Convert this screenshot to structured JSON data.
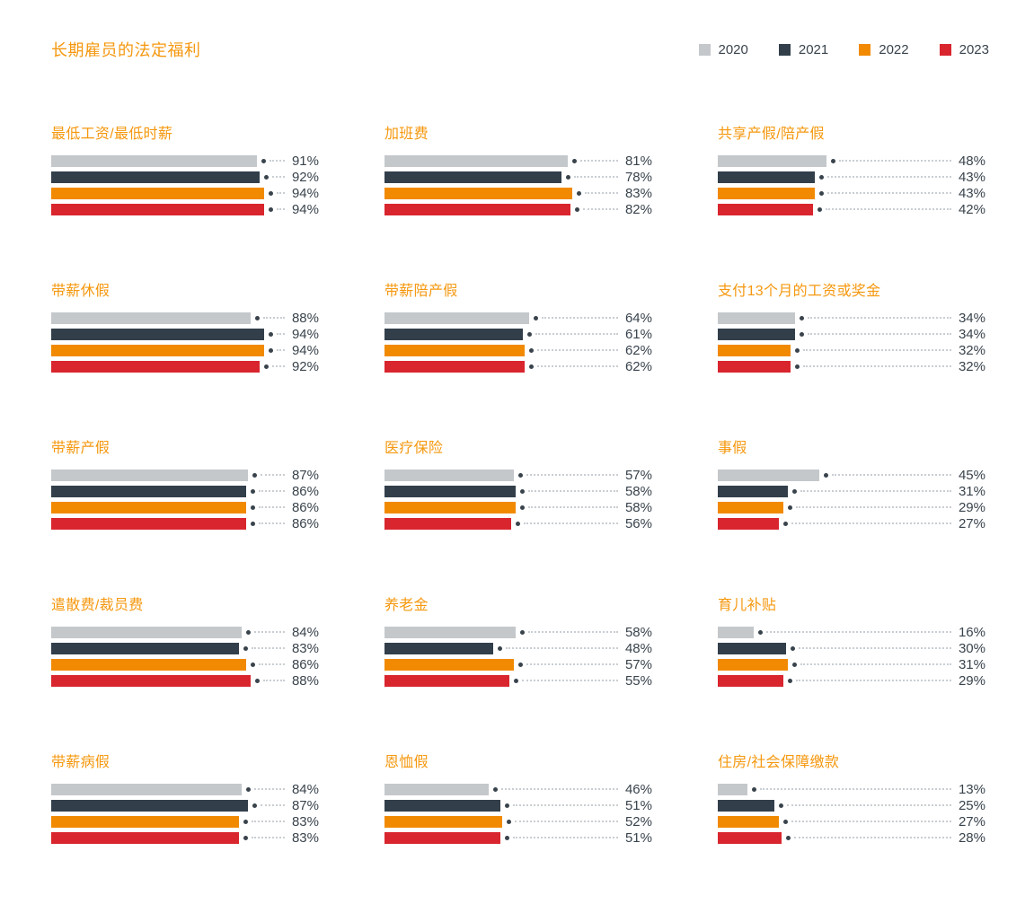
{
  "page_title": "长期雇员的法定福利",
  "accent_color": "#f5980f",
  "text_color": "#39434c",
  "leader_color": "#c9ced3",
  "chart_data": {
    "type": "bar",
    "orientation": "horizontal",
    "unit": "%",
    "xlim": [
      0,
      100
    ],
    "legend_position": "top-right",
    "grid": false,
    "series_years": [
      "2020",
      "2021",
      "2022",
      "2023"
    ],
    "series_colors": [
      "#c4c8cb",
      "#323f4b",
      "#f18a00",
      "#d9252e"
    ],
    "charts": [
      {
        "title": "最低工资/最低时薪",
        "values": [
          91,
          92,
          94,
          94
        ]
      },
      {
        "title": "加班费",
        "values": [
          81,
          78,
          83,
          82
        ]
      },
      {
        "title": "共享产假/陪产假",
        "values": [
          48,
          43,
          43,
          42
        ]
      },
      {
        "title": "带薪休假",
        "values": [
          88,
          94,
          94,
          92
        ]
      },
      {
        "title": "带薪陪产假",
        "values": [
          64,
          61,
          62,
          62
        ]
      },
      {
        "title": "支付13个月的工资或奖金",
        "values": [
          34,
          34,
          32,
          32
        ]
      },
      {
        "title": "带薪产假",
        "values": [
          87,
          86,
          86,
          86
        ]
      },
      {
        "title": "医疗保险",
        "values": [
          57,
          58,
          58,
          56
        ]
      },
      {
        "title": "事假",
        "values": [
          45,
          31,
          29,
          27
        ]
      },
      {
        "title": "遣散费/裁员费",
        "values": [
          84,
          83,
          86,
          88
        ]
      },
      {
        "title": "养老金",
        "values": [
          58,
          48,
          57,
          55
        ]
      },
      {
        "title": "育儿补贴",
        "values": [
          16,
          30,
          31,
          29
        ]
      },
      {
        "title": "带薪病假",
        "values": [
          84,
          87,
          83,
          83
        ]
      },
      {
        "title": "恩恤假",
        "values": [
          46,
          51,
          52,
          51
        ]
      },
      {
        "title": "住房/社会保障缴款",
        "values": [
          13,
          25,
          27,
          28
        ]
      }
    ]
  }
}
